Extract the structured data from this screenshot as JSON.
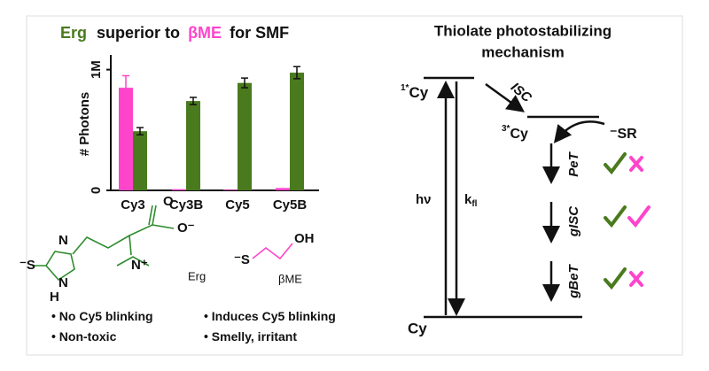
{
  "chart_data": {
    "type": "bar",
    "title_middle": "superior to",
    "title_end": "for SMF",
    "y_label": "# Photons",
    "categories": [
      "Cy3",
      "Cy3B",
      "Cy5",
      "Cy5B"
    ],
    "series": [
      {
        "name": "βME",
        "color": "#ff44cc",
        "values": [
          850000,
          10000,
          5000,
          20000
        ],
        "errors": [
          100000,
          0,
          0,
          0
        ]
      },
      {
        "name": "Erg",
        "color": "#4a7a1e",
        "values": [
          490000,
          740000,
          890000,
          975000
        ],
        "errors": [
          30000,
          30000,
          40000,
          50000
        ]
      }
    ],
    "ylim": [
      0,
      1100000
    ],
    "yticks": [
      0,
      {
        "value": 1000000,
        "label": "1M"
      }
    ]
  },
  "molecules": {
    "erg_atoms": [
      "⁻S",
      "N",
      "N",
      "H",
      "N⁺",
      "O",
      "O⁻"
    ],
    "bme_atoms": [
      "⁻S",
      "OH"
    ]
  },
  "notes": {
    "erg": [
      "No Cy5 blinking",
      "Non-toxic"
    ],
    "bme": [
      "Induces Cy5 blinking",
      "Smelly, irritant"
    ]
  },
  "diagram": {
    "title": [
      "Thiolate photostabilizing",
      "mechanism"
    ],
    "excited_singlet": {
      "sup": "1*",
      "label": "Cy"
    },
    "triplet": {
      "sup": "3*",
      "label": "Cy"
    },
    "ground": "Cy",
    "quencher": "⁻SR",
    "isc": "ISC",
    "excitation": "hν",
    "fluorescence": {
      "label": "k",
      "sub": "fl"
    },
    "pet": "PeT",
    "gisc": "gISC",
    "gbet": "gBeT"
  }
}
